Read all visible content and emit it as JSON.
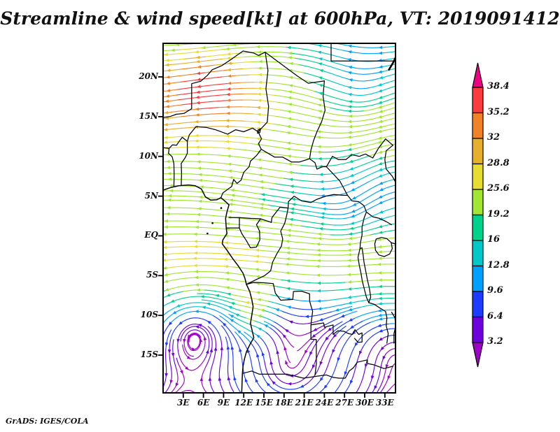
{
  "title": "Streamline & wind speed[kt] at 600hPa, VT: 2019091412",
  "attribution": "GrADS: IGES/COLA",
  "chart_data": {
    "type": "streamline-map",
    "title": "Streamline & wind speed[kt] at 600hPa, VT: 2019091412",
    "variable": "wind speed",
    "units": "kt",
    "pressure_level": "600hPa",
    "valid_time": "2019091412",
    "lon_ticks": [
      "3E",
      "6E",
      "9E",
      "12E",
      "15E",
      "18E",
      "21E",
      "24E",
      "27E",
      "30E",
      "33E"
    ],
    "lat_ticks": [
      "20N",
      "15N",
      "10N",
      "5N",
      "EQ",
      "5S",
      "10S",
      "15S"
    ],
    "region": {
      "west": "0E",
      "east": "35E",
      "south": "20S",
      "north": "24N"
    },
    "colorbar": {
      "levels": [
        3.2,
        6.4,
        9.6,
        12.8,
        16,
        19.2,
        25.6,
        28.8,
        32,
        35.2,
        38.4
      ],
      "labels_top_to_bottom": [
        "38.4",
        "35.2",
        "32",
        "28.8",
        "25.6",
        "19.2",
        "16",
        "12.8",
        "9.6",
        "6.4",
        "3.2"
      ],
      "colors_low_to_high": [
        "#A000C8",
        "#6E00DC",
        "#1E3CFF",
        "#00A0FF",
        "#00C8C8",
        "#00D28C",
        "#A0E632",
        "#E6DC32",
        "#E6AF2D",
        "#F08228",
        "#FA3C3C",
        "#F00082"
      ]
    },
    "map_overlay": "African coastline, country borders and lakes drawn in black",
    "flow_features": [
      "broad easterly (westward) flow over the northern half, strongest 30-37 kt (orange/red) near 15N-20N in the northwest",
      "weak 4-13 kt flow (violet/blue/cyan) with swirling eddies over the northeast",
      "teal-green easterlies 13-19 kt along 5N and the equator",
      "yellow-green band around 20-25 kt just south of the equator in the west",
      "large slow anticyclonic gyre (violet/blue, 3-10 kt) over the southeast Atlantic near 10S with a yellow fast streak along the Angola coast",
      "weak curved southwesterly-turning flow (blue/violet) over the southeast interior"
    ]
  }
}
